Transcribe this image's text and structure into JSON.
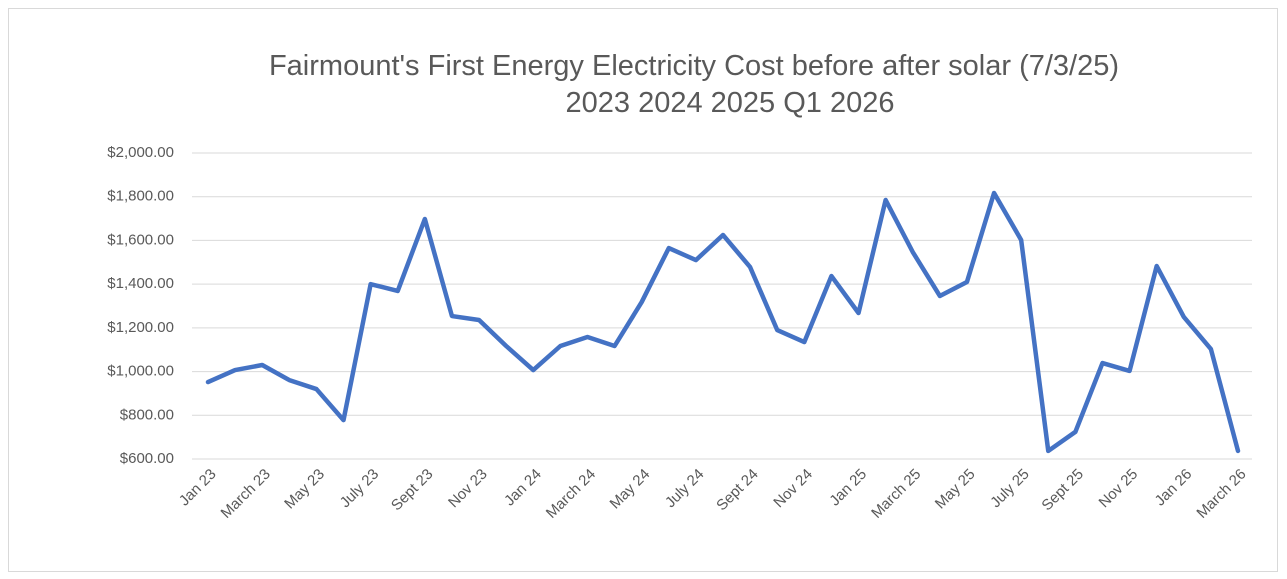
{
  "chart_data": {
    "type": "line",
    "title": "Fairmount's First Energy Electricity Cost before after solar (7/3/25)",
    "subtitle": "2023 2024 2025 Q1 2026",
    "categories": [
      "Jan 23",
      null,
      "March 23",
      null,
      "May 23",
      null,
      "July 23",
      null,
      "Sept 23",
      null,
      "Nov 23",
      null,
      "Jan 24",
      null,
      "March 24",
      null,
      "May 24",
      null,
      "July 24",
      null,
      "Sept 24",
      null,
      "Nov 24",
      null,
      "Jan 25",
      null,
      "March 25",
      null,
      "May 25",
      null,
      "July 25",
      null,
      "Sept 25",
      null,
      "Nov 25",
      null,
      "Jan 26",
      null,
      "March 26"
    ],
    "series": [
      {
        "name": "Cost",
        "color": "#4472c4",
        "values": [
          952,
          1007,
          1030,
          961,
          920,
          778,
          1400,
          1369,
          1698,
          1254,
          1236,
          1117,
          1007,
          1117,
          1158,
          1117,
          1318,
          1565,
          1510,
          1625,
          1478,
          1190,
          1135,
          1437,
          1268,
          1785,
          1547,
          1346,
          1410,
          1817,
          1602,
          637,
          724,
          1039,
          1003,
          1483,
          1250,
          1103,
          637
        ]
      }
    ],
    "ylim": [
      600,
      2000
    ],
    "yticks": [
      {
        "value": 600,
        "label": "$600.00"
      },
      {
        "value": 800,
        "label": "$800.00"
      },
      {
        "value": 1000,
        "label": "$1,000.00"
      },
      {
        "value": 1200,
        "label": "$1,200.00"
      },
      {
        "value": 1400,
        "label": "$1,400.00"
      },
      {
        "value": 1600,
        "label": "$1,600.00"
      },
      {
        "value": 1800,
        "label": "$1,800.00"
      },
      {
        "value": 2000,
        "label": "$2,000.00"
      }
    ],
    "grid": true
  }
}
